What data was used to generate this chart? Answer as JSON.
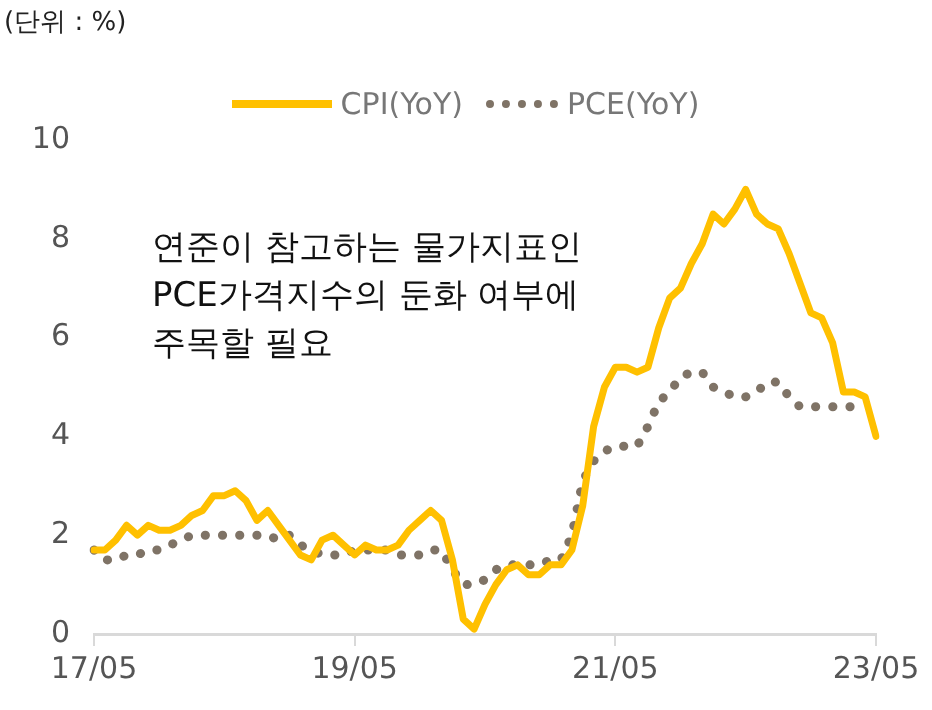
{
  "chart_data": {
    "type": "line",
    "ylabel": "(단위 : %)",
    "legend": "top",
    "categories": [
      "17/05",
      null,
      null,
      null,
      null,
      null,
      null,
      null,
      null,
      null,
      null,
      null,
      null,
      null,
      null,
      null,
      null,
      null,
      null,
      null,
      null,
      null,
      null,
      null,
      "19/05",
      null,
      null,
      null,
      null,
      null,
      null,
      null,
      null,
      null,
      null,
      null,
      null,
      null,
      null,
      null,
      null,
      null,
      null,
      null,
      null,
      null,
      null,
      null,
      "21/05",
      null,
      null,
      null,
      null,
      null,
      null,
      null,
      null,
      null,
      null,
      null,
      null,
      null,
      null,
      null,
      null,
      null,
      null,
      null,
      null,
      null,
      null,
      null,
      "23/05"
    ],
    "series": [
      {
        "name": "CPI(YoY)",
        "color": "#ffc000",
        "line_style": "solid",
        "values": [
          1.7,
          1.7,
          1.9,
          2.2,
          2.0,
          2.2,
          2.1,
          2.1,
          2.2,
          2.4,
          2.5,
          2.8,
          2.8,
          2.9,
          2.7,
          2.3,
          2.5,
          2.2,
          1.9,
          1.6,
          1.5,
          1.9,
          2.0,
          1.8,
          1.6,
          1.8,
          1.7,
          1.7,
          1.8,
          2.1,
          2.3,
          2.5,
          2.3,
          1.5,
          0.3,
          0.1,
          0.6,
          1.0,
          1.3,
          1.4,
          1.2,
          1.2,
          1.4,
          1.4,
          1.7,
          2.6,
          4.2,
          5.0,
          5.4,
          5.4,
          5.3,
          5.4,
          6.2,
          6.8,
          7.0,
          7.5,
          7.9,
          8.5,
          8.3,
          8.6,
          9.0,
          8.5,
          8.3,
          8.2,
          7.7,
          7.1,
          6.5,
          6.4,
          5.9,
          4.9,
          4.9,
          4.8,
          4.0
        ]
      },
      {
        "name": "PCE(YoY)",
        "color": "#7f7366",
        "line_style": "dotted",
        "values": [
          1.7,
          1.5,
          1.5,
          1.6,
          1.6,
          1.7,
          1.7,
          1.8,
          1.9,
          2.0,
          2.0,
          2.0,
          2.0,
          2.0,
          2.0,
          2.0,
          2.0,
          1.9,
          2.0,
          1.8,
          1.7,
          1.6,
          1.6,
          1.6,
          1.7,
          1.7,
          1.7,
          1.7,
          1.6,
          1.6,
          1.6,
          1.7,
          1.7,
          1.3,
          1.0,
          1.0,
          1.1,
          1.3,
          1.4,
          1.4,
          1.4,
          1.4,
          1.5,
          1.5,
          2.0,
          3.1,
          3.5,
          3.7,
          3.8,
          3.8,
          3.8,
          4.2,
          4.7,
          4.9,
          5.2,
          5.3,
          5.3,
          5.0,
          4.9,
          4.8,
          4.8,
          4.9,
          5.1,
          5.1,
          4.8,
          4.6,
          4.6,
          4.6,
          4.6,
          4.6,
          4.6,
          4.6,
          null
        ]
      }
    ],
    "ylim": [
      0,
      10
    ],
    "yticks": [
      0,
      2,
      4,
      6,
      8,
      10
    ],
    "annotations": [
      "연준이 참고하는 물가지표인\nPCE가격지수의 둔화 여부에\n주목할 필요"
    ]
  }
}
